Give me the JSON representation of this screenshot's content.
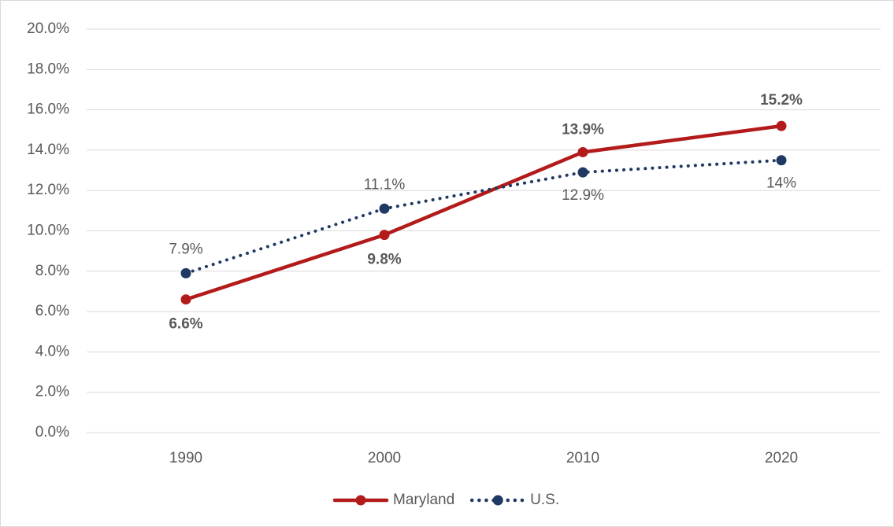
{
  "chart_data": {
    "type": "line",
    "categories": [
      "1990",
      "2000",
      "2010",
      "2020"
    ],
    "series": [
      {
        "name": "Maryland",
        "color": "#b31b1b",
        "values": [
          6.6,
          9.8,
          13.9,
          15.2
        ],
        "value_labels": [
          "6.6%",
          "9.8%",
          "13.9%",
          "15.2%"
        ]
      },
      {
        "name": "U.S.",
        "color": "#1f3864",
        "values": [
          7.9,
          11.1,
          12.9,
          13.5
        ],
        "value_labels": [
          "7.9%",
          "11.1%",
          "12.9%",
          "14%"
        ]
      }
    ],
    "ylim": [
      0,
      20
    ],
    "yticks": [
      {
        "value": 0,
        "label": "0.0%"
      },
      {
        "value": 2,
        "label": "2.0%"
      },
      {
        "value": 4,
        "label": "4.0%"
      },
      {
        "value": 6,
        "label": "6.0%"
      },
      {
        "value": 8,
        "label": "8.0%"
      },
      {
        "value": 10,
        "label": "10.0%"
      },
      {
        "value": 12,
        "label": "12.0%"
      },
      {
        "value": 14,
        "label": "14.0%"
      },
      {
        "value": 16,
        "label": "16.0%"
      },
      {
        "value": 18,
        "label": "18.0%"
      },
      {
        "value": 20,
        "label": "20.0%"
      }
    ],
    "grid": true,
    "legend": "bottom"
  }
}
